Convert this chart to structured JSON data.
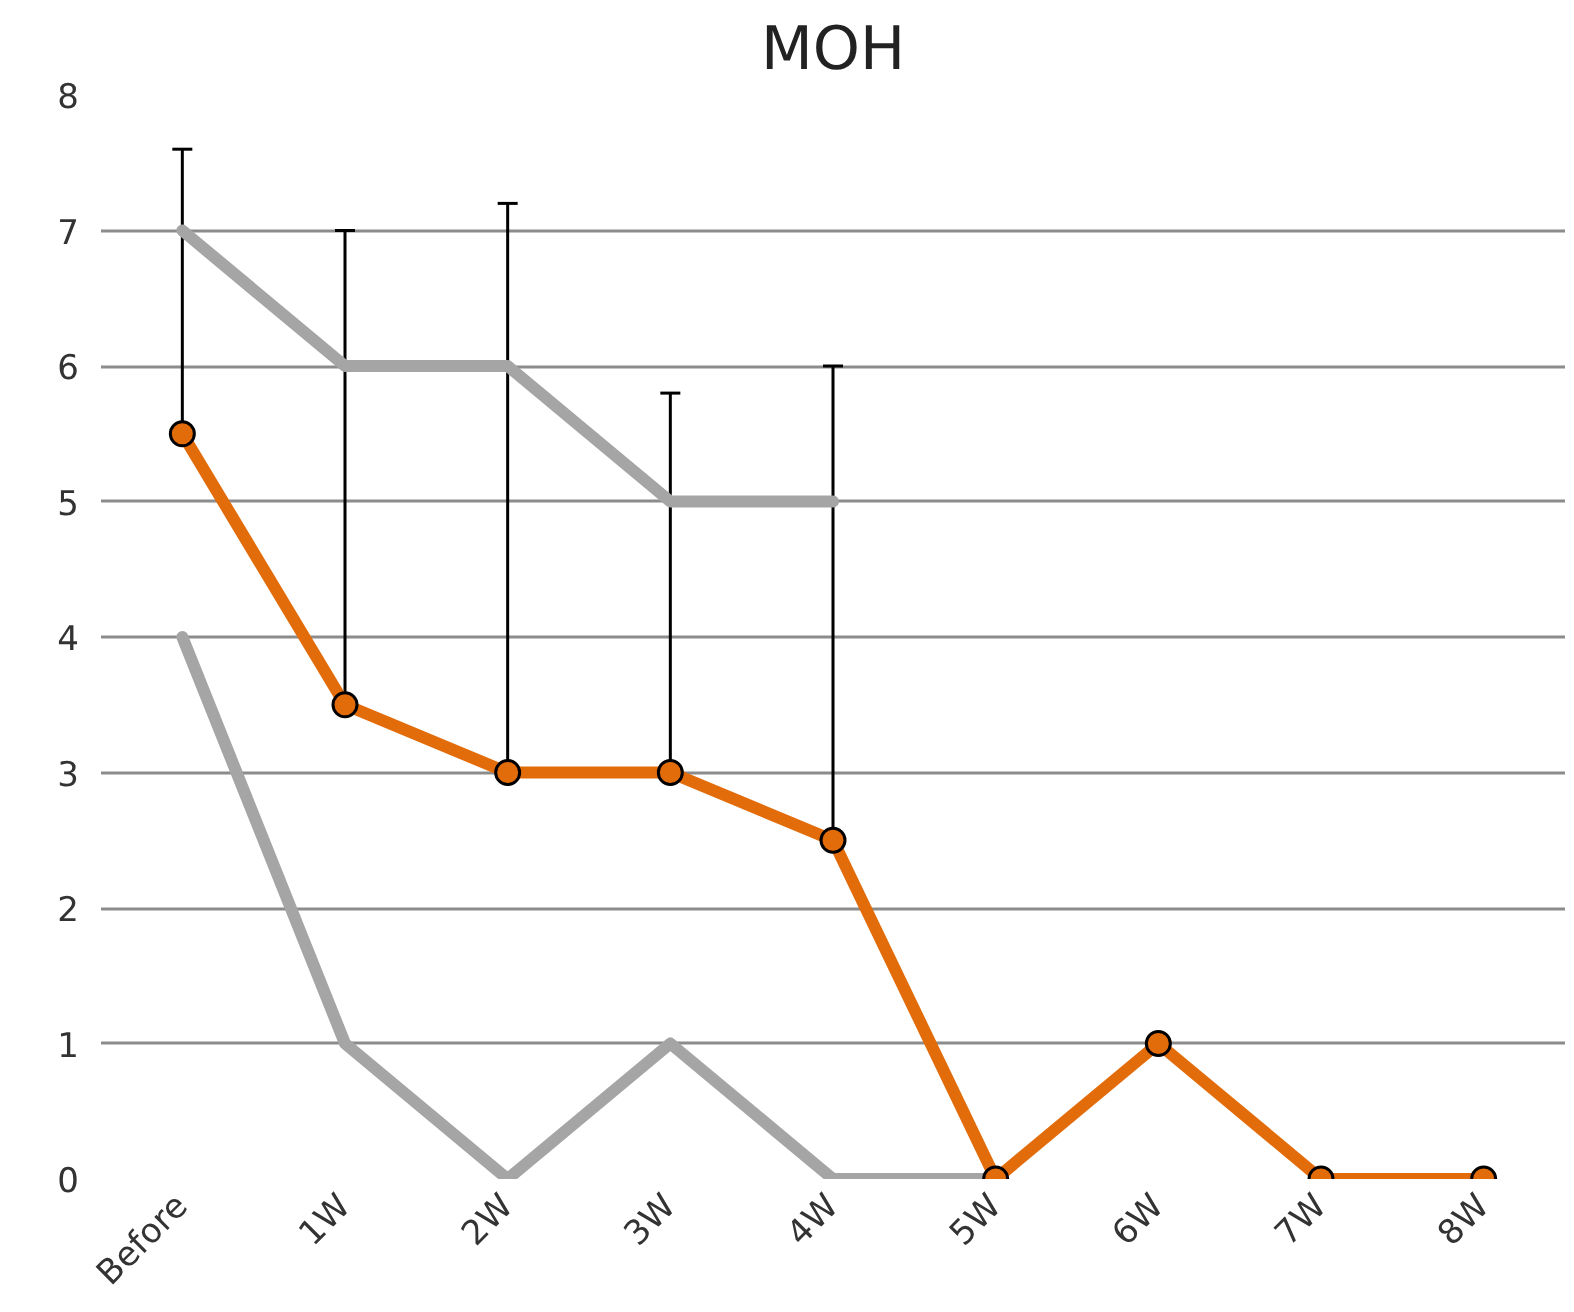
{
  "chart_data": {
    "type": "line",
    "title": "MOH",
    "categories": [
      "Before",
      "1W",
      "2W",
      "3W",
      "4W",
      "5W",
      "6W",
      "7W",
      "8W"
    ],
    "series": [
      {
        "color": "#a5a5a5",
        "values": [
          7,
          6,
          6,
          5,
          5,
          null,
          null,
          null,
          null
        ],
        "marker": "none"
      },
      {
        "color": "#a5a5a5",
        "values": [
          4,
          1,
          0,
          1,
          0,
          0,
          null,
          null,
          null
        ],
        "marker": "none"
      },
      {
        "color": "#e36c0a",
        "values": [
          5.5,
          3.5,
          3,
          3,
          2.5,
          0,
          1,
          0,
          0
        ],
        "marker": "circle",
        "errors": [
          [
            5.5,
            7.6
          ],
          [
            3.5,
            7.0
          ],
          [
            3,
            7.2
          ],
          [
            3,
            5.8
          ],
          [
            2.5,
            6.0
          ],
          null,
          null,
          null,
          null
        ]
      }
    ],
    "ylim": [
      0,
      8
    ],
    "yticks": [
      0,
      1,
      2,
      3,
      4,
      5,
      6,
      7,
      8
    ],
    "grid": "y"
  }
}
